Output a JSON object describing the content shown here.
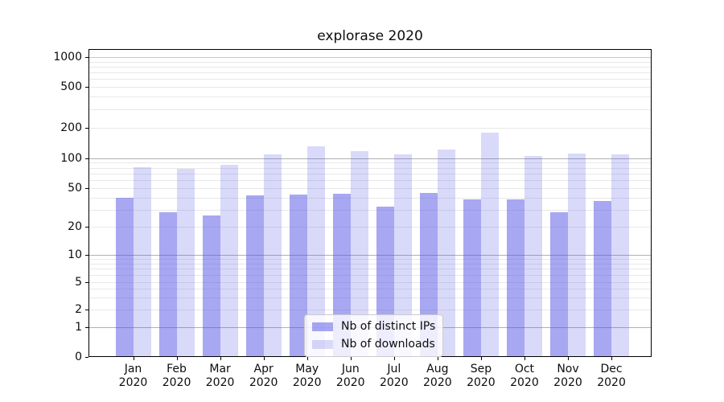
{
  "title": "explorase 2020",
  "colors": {
    "bar_ips": "rgba(80,80,230,0.5)",
    "bar_downloads": "rgba(80,80,230,0.22)",
    "grid_major": "#b0b0b0",
    "grid_top_major": "#c6c6c6",
    "grid_minor": "#e8e8e8",
    "spine": "#000000"
  },
  "y_axis": {
    "tick_labels": [
      "1000",
      "500",
      "200",
      "100",
      "50",
      "20",
      "10",
      "5",
      "2",
      "1",
      "0"
    ]
  },
  "legend": {
    "items_note": "labels bound from chart_data.series names"
  },
  "chart_data": {
    "type": "bar",
    "title": "explorase 2020",
    "xlabel": "",
    "ylabel": "",
    "categories": [
      "Jan 2020",
      "Feb 2020",
      "Mar 2020",
      "Apr 2020",
      "May 2020",
      "Jun 2020",
      "Jul 2020",
      "Aug 2020",
      "Sep 2020",
      "Oct 2020",
      "Nov 2020",
      "Dec 2020"
    ],
    "series": [
      {
        "name": "Nb of distinct IPs",
        "values": [
          40,
          28,
          26,
          42,
          43,
          44,
          32,
          45,
          38,
          38,
          28,
          37
        ]
      },
      {
        "name": "Nb of downloads",
        "values": [
          81,
          78,
          85,
          108,
          130,
          118,
          108,
          122,
          180,
          105,
          110,
          108
        ]
      }
    ],
    "yscale": "symlog",
    "y_ticks": [
      0,
      1,
      2,
      5,
      10,
      20,
      50,
      100,
      200,
      500,
      1000
    ],
    "ylim": [
      0,
      1100
    ],
    "grid": true,
    "legend_position": "lower center"
  }
}
